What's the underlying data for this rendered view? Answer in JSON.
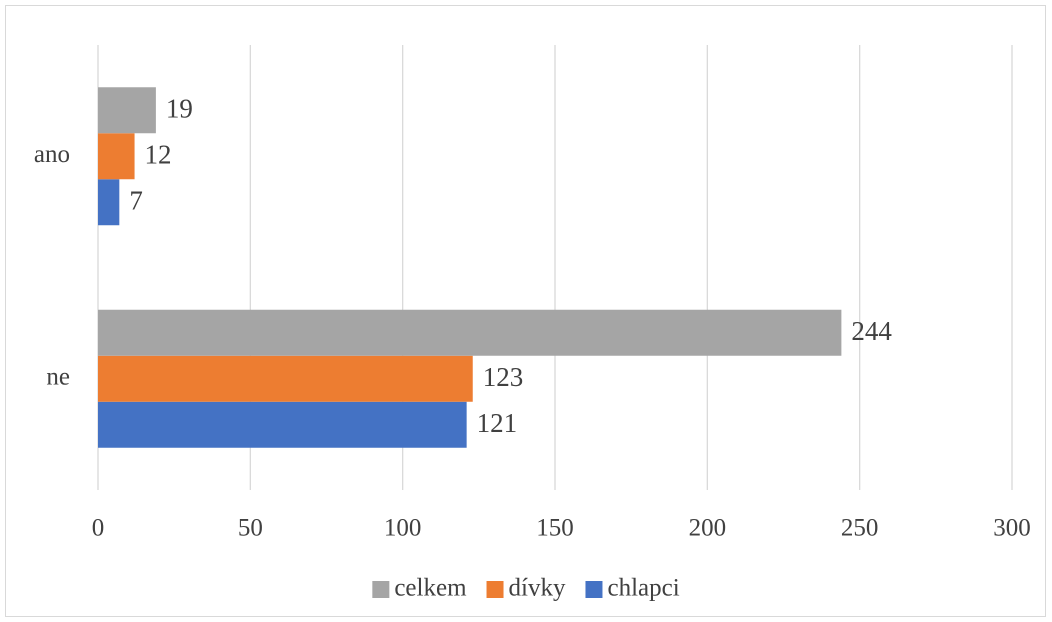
{
  "chart_data": {
    "type": "barh",
    "categories": [
      "ano",
      "ne"
    ],
    "series": [
      {
        "name": "chlapci",
        "color": "#4472c4",
        "values": [
          7,
          121
        ]
      },
      {
        "name": "dívky",
        "color": "#ed7d31",
        "values": [
          12,
          123
        ]
      },
      {
        "name": "celkem",
        "color": "#a5a5a5",
        "values": [
          19,
          244
        ]
      }
    ],
    "xlim": [
      0,
      300
    ],
    "xticks": [
      0,
      50,
      100,
      150,
      200,
      250,
      300
    ],
    "grid": true,
    "legend": "bottom"
  }
}
